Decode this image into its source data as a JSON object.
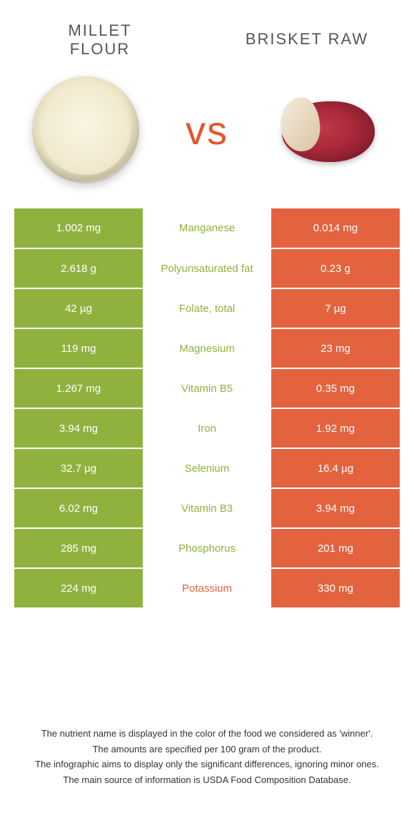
{
  "header": {
    "left_title": "Millet flour",
    "right_title": "Brisket raw",
    "vs_label": "vs"
  },
  "colors": {
    "left": "#8fb23f",
    "right": "#e4633f",
    "mid_bg": "#ffffff"
  },
  "type": "infographic",
  "rows": [
    {
      "nutrient": "Manganese",
      "left": "1.002 mg",
      "right": "0.014 mg",
      "winner": "left"
    },
    {
      "nutrient": "Polyunsaturated fat",
      "left": "2.618 g",
      "right": "0.23 g",
      "winner": "left"
    },
    {
      "nutrient": "Folate, total",
      "left": "42 µg",
      "right": "7 µg",
      "winner": "left"
    },
    {
      "nutrient": "Magnesium",
      "left": "119 mg",
      "right": "23 mg",
      "winner": "left"
    },
    {
      "nutrient": "Vitamin B5",
      "left": "1.267 mg",
      "right": "0.35 mg",
      "winner": "left"
    },
    {
      "nutrient": "Iron",
      "left": "3.94 mg",
      "right": "1.92 mg",
      "winner": "left"
    },
    {
      "nutrient": "Selenium",
      "left": "32.7 µg",
      "right": "16.4 µg",
      "winner": "left"
    },
    {
      "nutrient": "Vitamin B3",
      "left": "6.02 mg",
      "right": "3.94 mg",
      "winner": "left"
    },
    {
      "nutrient": "Phosphorus",
      "left": "285 mg",
      "right": "201 mg",
      "winner": "left"
    },
    {
      "nutrient": "Potassium",
      "left": "224 mg",
      "right": "330 mg",
      "winner": "right"
    }
  ],
  "footnotes": [
    "The nutrient name is displayed in the color of the food we considered as 'winner'.",
    "The amounts are specified per 100 gram of the product.",
    "The infographic aims to display only the significant differences, ignoring minor ones.",
    "The main source of information is USDA Food Composition Database."
  ]
}
